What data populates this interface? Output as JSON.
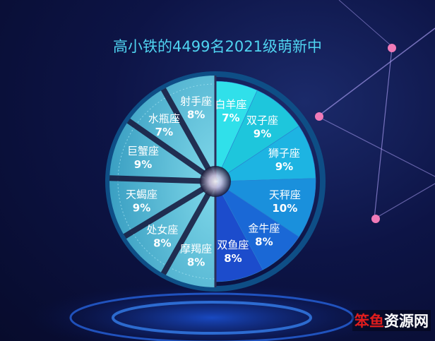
{
  "title": "高小铁的4499名2021级萌新中",
  "colors": {
    "title": "#4fd3f0",
    "right_slices": [
      "#30e0ea",
      "#1ec6dc",
      "#1db4e2",
      "#1a90dc",
      "#1a68d6",
      "#1c4ccc"
    ],
    "left_half": "#4fb6d2"
  },
  "watermark": {
    "part1": "笨鱼",
    "part2": "资源网"
  },
  "chart_data": {
    "type": "pie",
    "title": "高小铁的4499名2021级萌新中",
    "slices": [
      {
        "label": "白羊座",
        "value": 7,
        "text": "7%"
      },
      {
        "label": "双子座",
        "value": 9,
        "text": "9%"
      },
      {
        "label": "狮子座",
        "value": 9,
        "text": "9%"
      },
      {
        "label": "天秤座",
        "value": 10,
        "text": "10%"
      },
      {
        "label": "金牛座",
        "value": 8,
        "text": "8%"
      },
      {
        "label": "双鱼座",
        "value": 8,
        "text": "8%"
      },
      {
        "label": "摩羯座",
        "value": 8,
        "text": "8%"
      },
      {
        "label": "处女座",
        "value": 8,
        "text": "8%"
      },
      {
        "label": "天蝎座",
        "value": 9,
        "text": "9%"
      },
      {
        "label": "巨蟹座",
        "value": 9,
        "text": "9%"
      },
      {
        "label": "水瓶座",
        "value": 7,
        "text": "7%"
      },
      {
        "label": "射手座",
        "value": 8,
        "text": "8%"
      }
    ]
  }
}
